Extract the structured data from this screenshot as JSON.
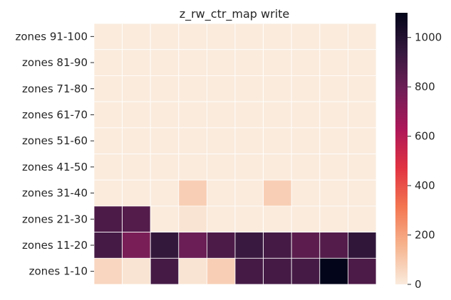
{
  "chart_data": {
    "type": "heatmap",
    "title": "z_rw_ctr_map write",
    "xlabel": "",
    "ylabel": "",
    "x_tick_labels": [],
    "row_labels": [
      "zones 91-100",
      "zones 81-90",
      "zones 71-80",
      "zones 61-70",
      "zones 51-60",
      "zones 41-50",
      "zones 31-40",
      "zones 21-30",
      "zones 11-20",
      "zones 1-10"
    ],
    "values": [
      [
        0,
        0,
        0,
        0,
        0,
        0,
        0,
        0,
        0,
        0
      ],
      [
        0,
        0,
        0,
        0,
        0,
        0,
        0,
        0,
        0,
        0
      ],
      [
        0,
        0,
        0,
        0,
        0,
        0,
        0,
        0,
        0,
        0
      ],
      [
        0,
        0,
        0,
        0,
        0,
        0,
        0,
        0,
        0,
        0
      ],
      [
        0,
        0,
        0,
        0,
        0,
        0,
        0,
        0,
        0,
        0
      ],
      [
        0,
        0,
        0,
        0,
        0,
        0,
        0,
        0,
        0,
        0
      ],
      [
        0,
        0,
        0,
        80,
        0,
        0,
        80,
        0,
        0,
        0
      ],
      [
        880,
        860,
        0,
        20,
        0,
        0,
        0,
        0,
        0,
        0
      ],
      [
        900,
        760,
        950,
        800,
        880,
        930,
        900,
        840,
        860,
        960
      ],
      [
        60,
        20,
        900,
        20,
        80,
        900,
        900,
        900,
        1100,
        880
      ]
    ],
    "colorbar": {
      "min": 0,
      "max": 1100,
      "ticks": [
        0,
        200,
        400,
        600,
        800,
        1000
      ],
      "colormap": "rocket_r",
      "stops": [
        "#faebdd",
        "#f6b48e",
        "#f37651",
        "#e13342",
        "#ad1759",
        "#701f57",
        "#35193e",
        "#03051a"
      ]
    },
    "grid": false,
    "cell_border_color": "#ffffff"
  }
}
